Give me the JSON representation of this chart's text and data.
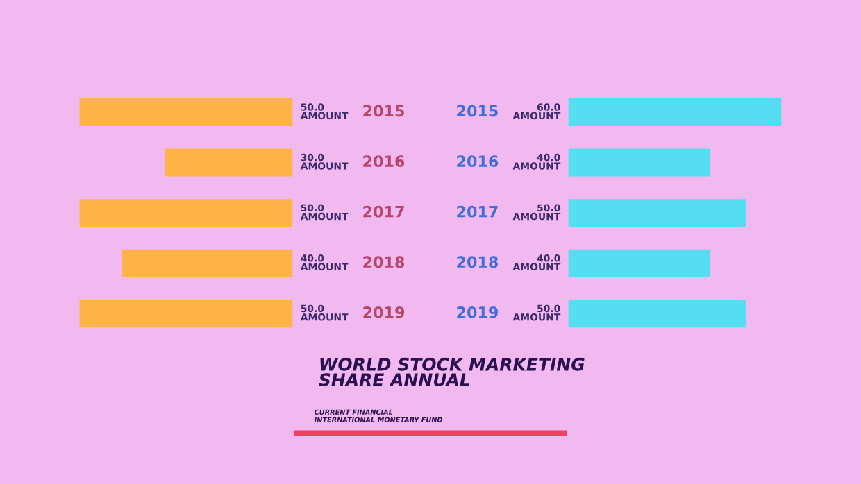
{
  "chart_data": [
    {
      "type": "bar",
      "orientation": "horizontal",
      "title": "WORLD STOCK MARKETING\nSHARE ANNUAL",
      "subtitle": "CURRENT FINANCIAL\nINTERNATIONAL MONETARY FUND",
      "categories": [
        "2015",
        "2016",
        "2017",
        "2018",
        "2019"
      ],
      "series": [
        {
          "color": "#ffb347",
          "values": [
            50.0,
            30.0,
            50.0,
            40.0,
            50.0
          ],
          "value_labels": [
            "50.0\nAMOUNT",
            "30.0\nAMOUNT",
            "50.0\nAMOUNT",
            "40.0\nAMOUNT",
            "50.0\nAMOUNT"
          ]
        }
      ]
    },
    {
      "type": "bar",
      "orientation": "horizontal",
      "categories": [
        "2015",
        "2016",
        "2017",
        "2018",
        "2019"
      ],
      "series": [
        {
          "color": "#55ddf2",
          "values": [
            60.0,
            40.0,
            50.0,
            40.0,
            50.0
          ],
          "value_labels": [
            "60.0\nAMOUNT",
            "40.0\nAMOUNT",
            "50.0\nAMOUNT",
            "40.0\nAMOUNT",
            "50.0\nAMOUNT"
          ]
        }
      ]
    }
  ]
}
